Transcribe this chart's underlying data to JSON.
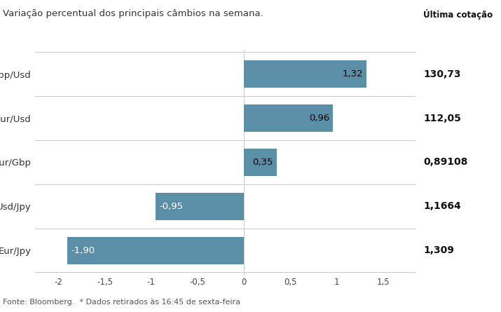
{
  "title": "Variação percentual dos principais câmbios na semana.",
  "categories": [
    "Gbp/Usd",
    "Eur/Usd",
    "Eur/Gbp",
    "Usd/Jpy",
    "Eur/Jpy"
  ],
  "values": [
    1.32,
    0.96,
    0.35,
    -0.95,
    -1.9
  ],
  "last_quotes": [
    "1,309",
    "1,1664",
    "0,89108",
    "112,05",
    "130,73"
  ],
  "bar_color": "#5b8fa8",
  "value_color_pos": "#000000",
  "value_color_neg": "#ffffff",
  "xlim": [
    -2.25,
    1.85
  ],
  "xticks": [
    -2.0,
    -1.5,
    -1.0,
    -0.5,
    0.0,
    0.5,
    1.0,
    1.5
  ],
  "xtick_labels": [
    "-2",
    "-1,5",
    "-1",
    "-0,5",
    "0",
    "0,5",
    "1",
    "1,5"
  ],
  "footer": "Fonte: Bloomberg.  * Dados retirados às 16:45 de sexta-feira",
  "background_color": "#ffffff",
  "separator_color": "#c8c8c8",
  "title_fontsize": 9.5,
  "label_fontsize": 9.5,
  "tick_fontsize": 8.5,
  "value_fontsize": 9.5,
  "quote_fontsize": 10,
  "quote_header": "Última cotação"
}
